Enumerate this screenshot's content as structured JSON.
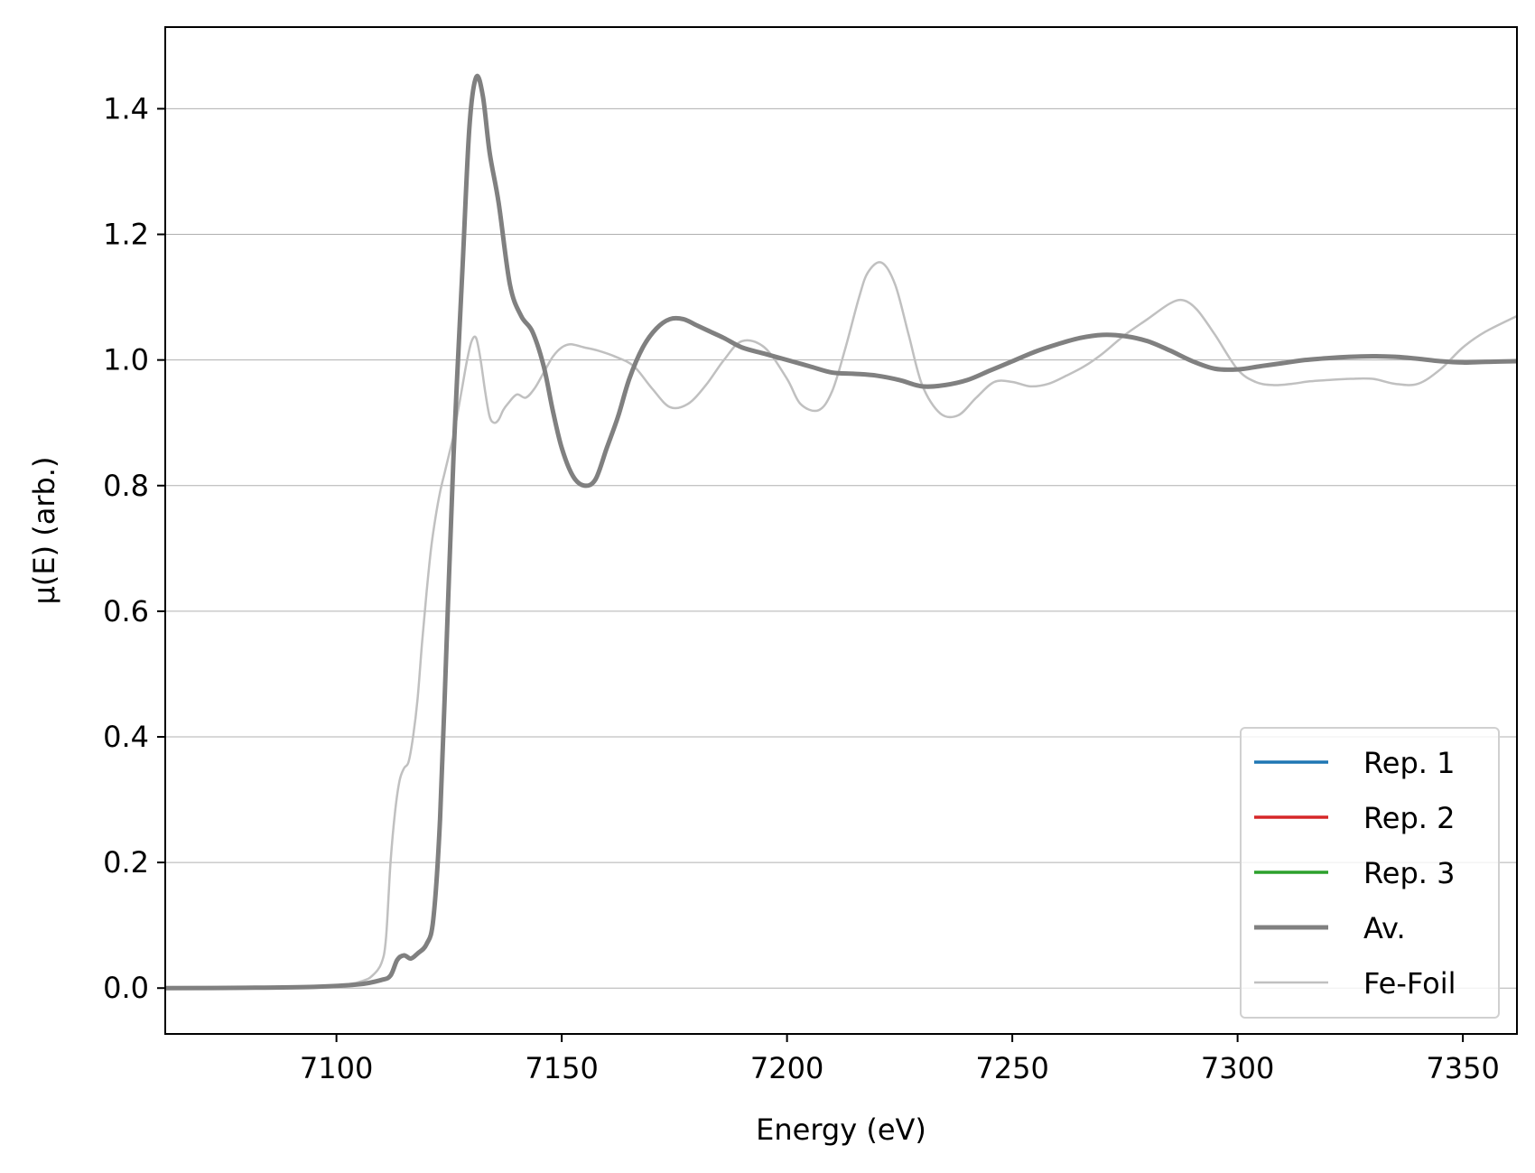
{
  "chart_data": {
    "type": "line",
    "title": "",
    "xlabel": "Energy (eV)",
    "ylabel": "μ(E) (arb.)",
    "xlim": [
      7062,
      7362
    ],
    "ylim": [
      -0.073,
      1.53
    ],
    "xticks": [
      7100,
      7150,
      7200,
      7250,
      7300,
      7350
    ],
    "xtick_labels": [
      "7100",
      "7150",
      "7200",
      "7250",
      "7300",
      "7350"
    ],
    "yticks": [
      0.0,
      0.2,
      0.4,
      0.6,
      0.8,
      1.0,
      1.2,
      1.4
    ],
    "ytick_labels": [
      "0.0",
      "0.2",
      "0.4",
      "0.6",
      "0.8",
      "1.0",
      "1.2",
      "1.4"
    ],
    "grid": "horizontal",
    "legend_position": "lower-right",
    "series": [
      {
        "name": "Rep. 1",
        "color": "#1f77b4",
        "linewidth": "normal",
        "x": [
          7062,
          7080,
          7095,
          7105,
          7110,
          7112,
          7113.5,
          7115,
          7116.5,
          7118,
          7120,
          7121.5,
          7123,
          7124.5,
          7126,
          7128,
          7129.5,
          7131,
          7132.5,
          7134,
          7136,
          7138.5,
          7141,
          7143.5,
          7146,
          7148,
          7150,
          7152.5,
          7155,
          7157.5,
          7160,
          7162.5,
          7165,
          7168,
          7171,
          7174,
          7177,
          7180,
          7183,
          7186,
          7190,
          7195,
          7200,
          7205,
          7210,
          7215,
          7220,
          7225,
          7230,
          7235,
          7240,
          7245,
          7250,
          7255,
          7260,
          7265,
          7270,
          7275,
          7280,
          7285,
          7290,
          7295,
          7300,
          7305,
          7310,
          7315,
          7320,
          7325,
          7330,
          7335,
          7340,
          7345,
          7350,
          7355,
          7362
        ],
        "y": [
          0.0,
          0.0005,
          0.002,
          0.006,
          0.013,
          0.02,
          0.045,
          0.052,
          0.047,
          0.055,
          0.07,
          0.11,
          0.27,
          0.56,
          0.85,
          1.15,
          1.37,
          1.45,
          1.42,
          1.33,
          1.25,
          1.12,
          1.07,
          1.045,
          0.99,
          0.92,
          0.86,
          0.815,
          0.8,
          0.81,
          0.86,
          0.91,
          0.97,
          1.02,
          1.05,
          1.065,
          1.065,
          1.055,
          1.045,
          1.035,
          1.02,
          1.01,
          1.0,
          0.99,
          0.98,
          0.978,
          0.975,
          0.968,
          0.958,
          0.96,
          0.968,
          0.983,
          0.998,
          1.013,
          1.025,
          1.035,
          1.04,
          1.038,
          1.03,
          1.015,
          0.998,
          0.986,
          0.985,
          0.99,
          0.995,
          1.0,
          1.003,
          1.005,
          1.006,
          1.005,
          1.002,
          0.998,
          0.996,
          0.997,
          0.998
        ]
      },
      {
        "name": "Rep. 2",
        "color": "#d62728",
        "linewidth": "normal",
        "x": [
          7062,
          7080,
          7095,
          7105,
          7110,
          7112,
          7113.5,
          7115,
          7116.5,
          7118,
          7120,
          7121.5,
          7123,
          7124.5,
          7126,
          7128,
          7129.5,
          7131,
          7132.5,
          7134,
          7136,
          7138.5,
          7141,
          7143.5,
          7146,
          7148,
          7150,
          7152.5,
          7155,
          7157.5,
          7160,
          7162.5,
          7165,
          7168,
          7171,
          7174,
          7177,
          7180,
          7183,
          7186,
          7190,
          7195,
          7200,
          7205,
          7210,
          7215,
          7220,
          7225,
          7230,
          7235,
          7240,
          7245,
          7250,
          7255,
          7260,
          7265,
          7270,
          7275,
          7280,
          7285,
          7290,
          7295,
          7300,
          7305,
          7310,
          7315,
          7320,
          7325,
          7330,
          7335,
          7340,
          7345,
          7350,
          7355,
          7362
        ],
        "y": [
          0.0,
          0.0005,
          0.002,
          0.006,
          0.013,
          0.02,
          0.045,
          0.052,
          0.047,
          0.055,
          0.07,
          0.11,
          0.27,
          0.56,
          0.85,
          1.15,
          1.37,
          1.45,
          1.42,
          1.33,
          1.25,
          1.12,
          1.07,
          1.045,
          0.99,
          0.92,
          0.86,
          0.815,
          0.8,
          0.81,
          0.86,
          0.91,
          0.97,
          1.02,
          1.05,
          1.065,
          1.065,
          1.055,
          1.045,
          1.035,
          1.02,
          1.01,
          1.0,
          0.99,
          0.98,
          0.978,
          0.975,
          0.968,
          0.958,
          0.96,
          0.968,
          0.983,
          0.998,
          1.013,
          1.025,
          1.035,
          1.04,
          1.038,
          1.03,
          1.015,
          0.998,
          0.986,
          0.985,
          0.99,
          0.995,
          1.0,
          1.003,
          1.005,
          1.006,
          1.005,
          1.002,
          0.998,
          0.996,
          0.997,
          0.998
        ]
      },
      {
        "name": "Rep. 3",
        "color": "#2ca02c",
        "linewidth": "normal",
        "x": [
          7062,
          7080,
          7095,
          7105,
          7110,
          7112,
          7113.5,
          7115,
          7116.5,
          7118,
          7120,
          7121.5,
          7123,
          7124.5,
          7126,
          7128,
          7129.5,
          7131,
          7132.5,
          7134,
          7136,
          7138.5,
          7141,
          7143.5,
          7146,
          7148,
          7150,
          7152.5,
          7155,
          7157.5,
          7160,
          7162.5,
          7165,
          7168,
          7171,
          7174,
          7177,
          7180,
          7183,
          7186,
          7190,
          7195,
          7200,
          7205,
          7210,
          7215,
          7220,
          7225,
          7230,
          7235,
          7240,
          7245,
          7250,
          7255,
          7260,
          7265,
          7270,
          7275,
          7280,
          7285,
          7290,
          7295,
          7300,
          7305,
          7310,
          7315,
          7320,
          7325,
          7330,
          7335,
          7340,
          7345,
          7350,
          7355,
          7362
        ],
        "y": [
          0.0,
          0.0005,
          0.002,
          0.006,
          0.013,
          0.02,
          0.045,
          0.052,
          0.047,
          0.055,
          0.07,
          0.11,
          0.27,
          0.56,
          0.85,
          1.15,
          1.37,
          1.45,
          1.42,
          1.33,
          1.25,
          1.12,
          1.07,
          1.045,
          0.99,
          0.92,
          0.86,
          0.815,
          0.8,
          0.81,
          0.86,
          0.91,
          0.97,
          1.02,
          1.05,
          1.065,
          1.065,
          1.055,
          1.045,
          1.035,
          1.02,
          1.01,
          1.0,
          0.99,
          0.98,
          0.978,
          0.975,
          0.968,
          0.958,
          0.96,
          0.968,
          0.983,
          0.998,
          1.013,
          1.025,
          1.035,
          1.04,
          1.038,
          1.03,
          1.015,
          0.998,
          0.986,
          0.985,
          0.99,
          0.995,
          1.0,
          1.003,
          1.005,
          1.006,
          1.005,
          1.002,
          0.998,
          0.996,
          0.997,
          0.998
        ]
      },
      {
        "name": "Av.",
        "color": "#808080",
        "linewidth": "thick",
        "x": [
          7062,
          7080,
          7095,
          7105,
          7110,
          7112,
          7113.5,
          7115,
          7116.5,
          7118,
          7120,
          7121.5,
          7123,
          7124.5,
          7126,
          7128,
          7129.5,
          7131,
          7132.5,
          7134,
          7136,
          7138.5,
          7141,
          7143.5,
          7146,
          7148,
          7150,
          7152.5,
          7155,
          7157.5,
          7160,
          7162.5,
          7165,
          7168,
          7171,
          7174,
          7177,
          7180,
          7183,
          7186,
          7190,
          7195,
          7200,
          7205,
          7210,
          7215,
          7220,
          7225,
          7230,
          7235,
          7240,
          7245,
          7250,
          7255,
          7260,
          7265,
          7270,
          7275,
          7280,
          7285,
          7290,
          7295,
          7300,
          7305,
          7310,
          7315,
          7320,
          7325,
          7330,
          7335,
          7340,
          7345,
          7350,
          7355,
          7362
        ],
        "y": [
          0.0,
          0.0005,
          0.002,
          0.006,
          0.013,
          0.02,
          0.045,
          0.052,
          0.047,
          0.055,
          0.07,
          0.11,
          0.27,
          0.56,
          0.85,
          1.15,
          1.37,
          1.45,
          1.42,
          1.33,
          1.25,
          1.12,
          1.07,
          1.045,
          0.99,
          0.92,
          0.86,
          0.815,
          0.8,
          0.81,
          0.86,
          0.91,
          0.97,
          1.02,
          1.05,
          1.065,
          1.065,
          1.055,
          1.045,
          1.035,
          1.02,
          1.01,
          1.0,
          0.99,
          0.98,
          0.978,
          0.975,
          0.968,
          0.958,
          0.96,
          0.968,
          0.983,
          0.998,
          1.013,
          1.025,
          1.035,
          1.04,
          1.038,
          1.03,
          1.015,
          0.998,
          0.986,
          0.985,
          0.99,
          0.995,
          1.0,
          1.003,
          1.005,
          1.006,
          1.005,
          1.002,
          0.998,
          0.996,
          0.997,
          0.998
        ]
      },
      {
        "name": "Fe-Foil",
        "color": "#c0c0c0",
        "linewidth": "thin",
        "x": [
          7062,
          7090,
          7102,
          7106,
          7108,
          7110,
          7111,
          7112,
          7113,
          7114,
          7115,
          7116,
          7117,
          7118,
          7119,
          7120,
          7121,
          7122,
          7123,
          7124,
          7125,
          7126,
          7127,
          7128,
          7129,
          7130,
          7131,
          7132,
          7133,
          7134,
          7135,
          7136,
          7137,
          7138,
          7140,
          7142,
          7144,
          7146,
          7148,
          7150,
          7152,
          7155,
          7158,
          7162,
          7166,
          7170,
          7174,
          7178,
          7182,
          7186,
          7190,
          7195,
          7200,
          7203,
          7207,
          7210,
          7213,
          7216,
          7218,
          7221,
          7224,
          7227,
          7230,
          7234,
          7238,
          7242,
          7246,
          7250,
          7254,
          7258,
          7262,
          7266,
          7270,
          7275,
          7280,
          7285,
          7288,
          7291,
          7295,
          7300,
          7304,
          7308,
          7312,
          7316,
          7320,
          7325,
          7330,
          7335,
          7340,
          7345,
          7350,
          7355,
          7362
        ],
        "y": [
          0.0,
          0.001,
          0.006,
          0.012,
          0.02,
          0.04,
          0.08,
          0.2,
          0.28,
          0.33,
          0.35,
          0.36,
          0.4,
          0.46,
          0.55,
          0.63,
          0.7,
          0.75,
          0.79,
          0.82,
          0.85,
          0.88,
          0.92,
          0.96,
          1.0,
          1.03,
          1.035,
          1.0,
          0.95,
          0.91,
          0.9,
          0.905,
          0.92,
          0.93,
          0.945,
          0.94,
          0.955,
          0.98,
          1.005,
          1.02,
          1.025,
          1.02,
          1.015,
          1.005,
          0.99,
          0.955,
          0.925,
          0.93,
          0.96,
          1.0,
          1.03,
          1.02,
          0.97,
          0.93,
          0.92,
          0.95,
          1.02,
          1.1,
          1.14,
          1.155,
          1.12,
          1.04,
          0.96,
          0.915,
          0.912,
          0.94,
          0.965,
          0.965,
          0.958,
          0.962,
          0.975,
          0.99,
          1.01,
          1.04,
          1.065,
          1.09,
          1.095,
          1.08,
          1.04,
          0.985,
          0.965,
          0.96,
          0.962,
          0.966,
          0.968,
          0.97,
          0.97,
          0.962,
          0.962,
          0.985,
          1.02,
          1.045,
          1.07
        ]
      }
    ]
  }
}
